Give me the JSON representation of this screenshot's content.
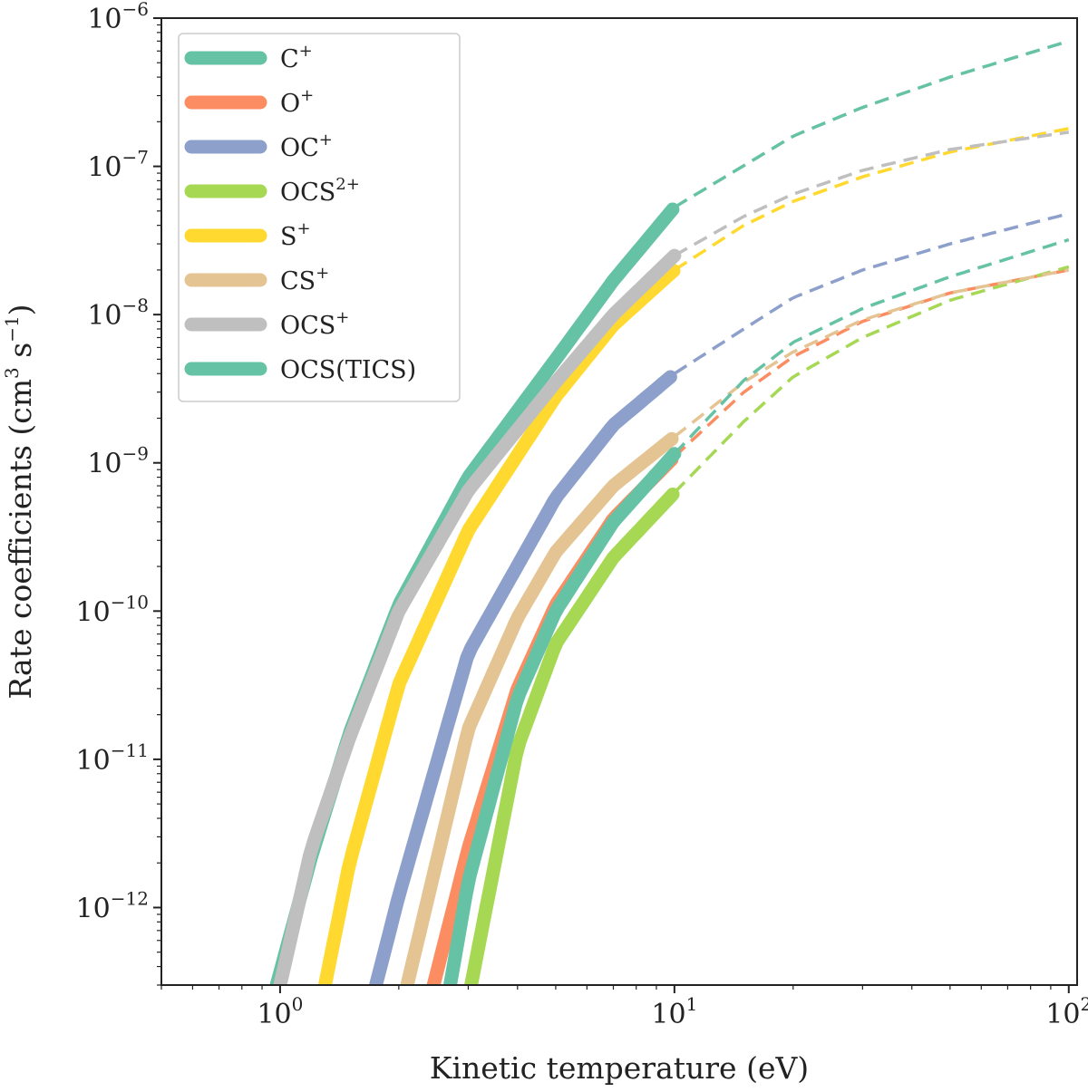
{
  "chart_data": {
    "type": "line",
    "xlabel": "Kinetic temperature (eV)",
    "ylabel": "Rate coefficients (cm³ s⁻¹)",
    "ylabel_parts": {
      "prefix": "Rate coefficients (cm",
      "exp1": "3",
      "mid": " s",
      "exp2": "−1",
      "suffix": ")"
    },
    "xscale": "log",
    "yscale": "log",
    "xlim": [
      0.5,
      105
    ],
    "ylim": [
      3e-13,
      1e-06
    ],
    "x_ticks": [
      {
        "base": "10",
        "exp": "0"
      },
      {
        "base": "10",
        "exp": "1"
      },
      {
        "base": "10",
        "exp": "2"
      }
    ],
    "y_ticks": [
      {
        "base": "10",
        "exp": "−6"
      },
      {
        "base": "10",
        "exp": "−7"
      },
      {
        "base": "10",
        "exp": "−8"
      },
      {
        "base": "10",
        "exp": "−9"
      },
      {
        "base": "10",
        "exp": "−10"
      },
      {
        "base": "10",
        "exp": "−11"
      },
      {
        "base": "10",
        "exp": "−12"
      }
    ],
    "grid": false,
    "legend_position": "top-left",
    "line_styles": {
      "x_range_1_to_10": "solid thick",
      "x_range_10_to_100": "dashed thin"
    },
    "series": [
      {
        "name": "C⁺",
        "label_base": "C",
        "label_sup": "+",
        "color": "#66c2a5",
        "x": [
          0.98,
          1.2,
          1.5,
          2,
          3,
          5,
          7,
          10,
          20,
          30,
          50,
          100
        ],
        "y": [
          3e-13,
          2.2e-12,
          1.5e-11,
          1.1e-10,
          8e-10,
          5e-09,
          1.7e-08,
          5.3e-08,
          1.6e-07,
          2.5e-07,
          4e-07,
          7e-07
        ]
      },
      {
        "name": "O⁺",
        "label_base": "O",
        "label_sup": "+",
        "color": "#fc8d62",
        "x": [
          2.45,
          3,
          4,
          5,
          7,
          10,
          15,
          20,
          30,
          50,
          100
        ],
        "y": [
          3e-13,
          2.5e-12,
          3e-11,
          1.1e-10,
          4.2e-10,
          1.1e-09,
          3e-09,
          5.2e-09,
          9e-09,
          1.4e-08,
          2e-08
        ]
      },
      {
        "name": "OC⁺",
        "label_base": "OC",
        "label_sup": "+",
        "color": "#8da0cb",
        "x": [
          1.75,
          2,
          3,
          5,
          7,
          10,
          15,
          20,
          30,
          50,
          100
        ],
        "y": [
          3e-13,
          1.2e-12,
          5.2e-11,
          5.8e-10,
          1.8e-09,
          4e-09,
          8e-09,
          1.3e-08,
          2e-08,
          3e-08,
          4.8e-08
        ]
      },
      {
        "name": "OCS²⁺",
        "label_base": "OCS",
        "label_sup": "2+",
        "color": "#a6d854",
        "x": [
          3.05,
          4,
          5,
          7,
          10,
          15,
          20,
          30,
          50,
          100
        ],
        "y": [
          3e-13,
          1.2e-11,
          6e-11,
          2.3e-10,
          6.3e-10,
          1.9e-09,
          3.8e-09,
          7e-09,
          1.25e-08,
          2.1e-08
        ]
      },
      {
        "name": "S⁺",
        "label_base": "S",
        "label_sup": "+",
        "color": "#ffd92f",
        "x": [
          1.3,
          1.5,
          2,
          3,
          5,
          7,
          10,
          15,
          20,
          30,
          50,
          100
        ],
        "y": [
          3e-13,
          2e-12,
          3.2e-11,
          3.5e-10,
          2.8e-09,
          8.5e-09,
          2e-08,
          4e-08,
          5.8e-08,
          8.5e-08,
          1.25e-07,
          1.8e-07
        ]
      },
      {
        "name": "CS⁺",
        "label_base": "CS",
        "label_sup": "+",
        "color": "#e5c494",
        "x": [
          2.1,
          3,
          4,
          5,
          7,
          10,
          15,
          20,
          30,
          50,
          100
        ],
        "y": [
          3e-13,
          1.6e-11,
          9e-11,
          2.5e-10,
          7e-10,
          1.5e-09,
          3.5e-09,
          5.6e-09,
          9.2e-09,
          1.4e-08,
          2e-08
        ]
      },
      {
        "name": "OCS⁺",
        "label_base": "OCS",
        "label_sup": "+",
        "color": "#bfbfbf",
        "x": [
          1.0,
          1.2,
          1.5,
          2,
          3,
          5,
          7,
          10,
          15,
          20,
          30,
          50,
          100
        ],
        "y": [
          3e-13,
          2.5e-12,
          1.4e-11,
          1e-10,
          6.5e-10,
          3.5e-09,
          1e-08,
          2.5e-08,
          4.6e-08,
          6.5e-08,
          9.4e-08,
          1.3e-07,
          1.7e-07
        ]
      },
      {
        "name": "OCS(TICS)",
        "label_base": "OCS(TICS)",
        "label_sup": "",
        "color": "#66c2a5",
        "x": [
          2.7,
          3,
          4,
          5,
          7,
          10,
          15,
          20,
          30,
          50,
          100
        ],
        "y": [
          3e-13,
          1.5e-12,
          2.6e-11,
          1e-10,
          4e-10,
          1.15e-09,
          3.6e-09,
          6.5e-09,
          1.1e-08,
          1.8e-08,
          3.2e-08
        ]
      }
    ]
  }
}
